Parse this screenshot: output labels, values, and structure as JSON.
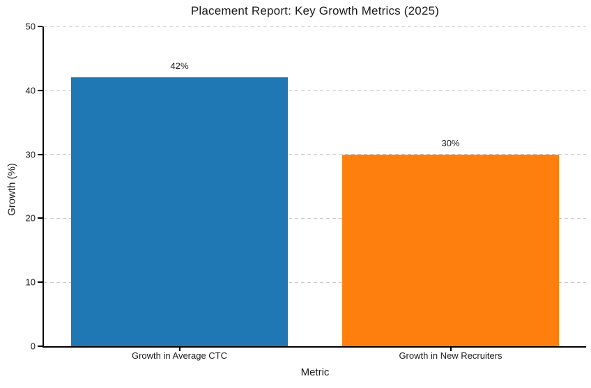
{
  "chart_data": {
    "type": "bar",
    "title": "Placement Report: Key Growth Metrics (2025)",
    "xlabel": "Metric",
    "ylabel": "Growth (%)",
    "categories": [
      "Growth in Average CTC",
      "Growth in New Recruiters"
    ],
    "values": [
      42,
      30
    ],
    "value_labels": [
      "42%",
      "30%"
    ],
    "bar_colors": [
      "#1f77b4",
      "#ff7f0e"
    ],
    "ylim": [
      0,
      50
    ],
    "yticks": [
      0,
      10,
      20,
      30,
      40,
      50
    ],
    "grid": {
      "axis": "y",
      "style": "dashed",
      "color": "#c9c9c9"
    },
    "legend": false,
    "bar_width_fraction": 0.8
  },
  "colors": {
    "background": "#ffffff",
    "spine": "#000000",
    "text": "#1a1a1a",
    "gridline": "#c9c9c9"
  }
}
